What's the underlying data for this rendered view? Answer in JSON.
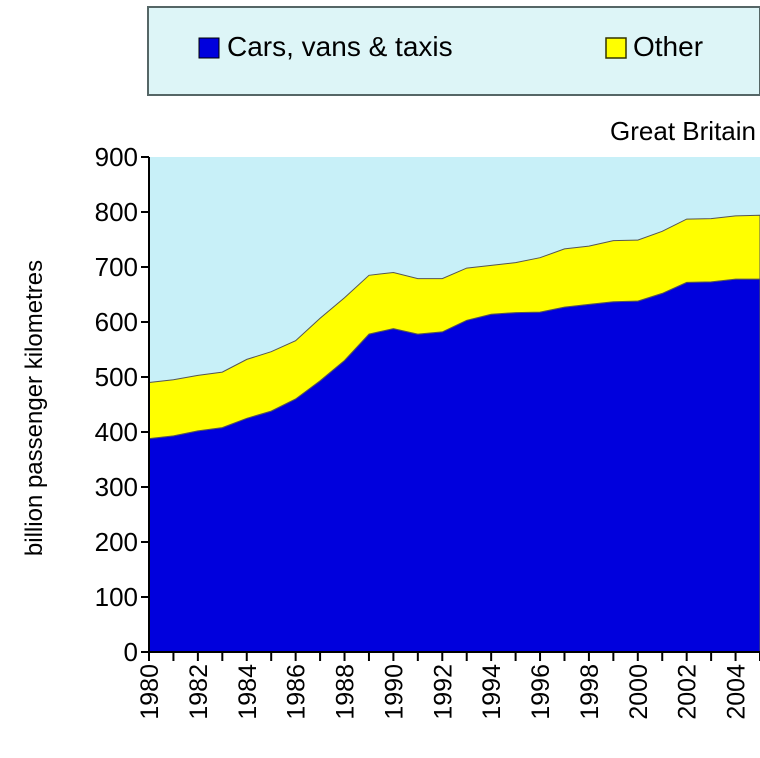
{
  "chart_data": {
    "type": "area",
    "stacked": true,
    "region_label": "Great Britain",
    "ylabel": "billion passenger kilometres",
    "xlabel": "",
    "ylim": [
      0,
      900
    ],
    "yticks": [
      0,
      100,
      200,
      300,
      400,
      500,
      600,
      700,
      800,
      900
    ],
    "xlim": [
      1980,
      2005
    ],
    "xtick_labels": [
      "1980",
      "1982",
      "1984",
      "1986",
      "1988",
      "1990",
      "1992",
      "1994",
      "1996",
      "1998",
      "2000",
      "2002",
      "2004"
    ],
    "x": [
      1980,
      1981,
      1982,
      1983,
      1984,
      1985,
      1986,
      1987,
      1988,
      1989,
      1990,
      1991,
      1992,
      1993,
      1994,
      1995,
      1996,
      1997,
      1998,
      1999,
      2000,
      2001,
      2002,
      2003,
      2004,
      2005
    ],
    "grid": false,
    "legend_position": "top",
    "plot_background": "#C8F0F8",
    "series": [
      {
        "name": "Cars, vans & taxis",
        "color": "#0000DD",
        "values": [
          388,
          393,
          402,
          408,
          425,
          438,
          460,
          493,
          530,
          578,
          588,
          578,
          582,
          603,
          614,
          617,
          618,
          627,
          632,
          637,
          638,
          652,
          672,
          673,
          678,
          678
        ]
      },
      {
        "name": "Other",
        "color": "#FFFF00",
        "values": [
          102,
          102,
          101,
          101,
          107,
          108,
          106,
          114,
          114,
          107,
          102,
          101,
          97,
          95,
          89,
          91,
          99,
          106,
          106,
          111,
          111,
          113,
          115,
          115,
          115,
          116
        ]
      }
    ]
  }
}
